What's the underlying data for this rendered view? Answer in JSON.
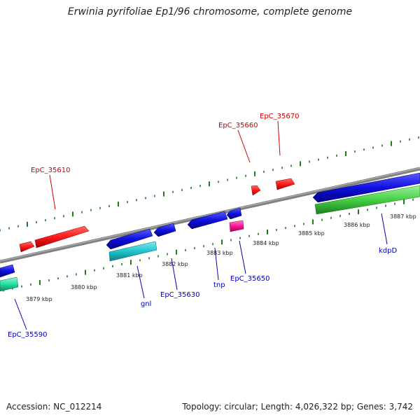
{
  "title": "Erwinia pyrifoliae Ep1/96 chromosome, complete genome",
  "footer": {
    "accession": "Accession: NC_012214",
    "summary": "Topology: circular; Length: 4,026,322 bp; Genes: 3,742"
  },
  "scale_labels": [
    "3879 kbp",
    "3880 kbp",
    "3881 kbp",
    "3882 kbp",
    "3883 kbp",
    "3884 kbp",
    "3885 kbp",
    "3886 kbp",
    "3887 kbp"
  ],
  "gene_labels": {
    "EpC_35610": "EpC_35610",
    "EpC_35660": "EpC_35660",
    "EpC_35670": "EpC_35670",
    "EpC_35590": "EpC_35590",
    "gnl": "gnl",
    "EpC_35630": "EpC_35630",
    "tnp": "tnp",
    "EpC_35650": "EpC_35650",
    "kdpD": "kdpD"
  },
  "colors": {
    "backbone": "#808080",
    "ticks": "#1f7a1f",
    "forward_cds": "#ff1a1a",
    "reverse_cds": "#1010e0",
    "rna_cyan": "#22c4cc",
    "rna_green": "#44d044",
    "rna_teal": "#22e0a0",
    "rna_pink": "#ff1493",
    "label_red": "#cc0000",
    "label_blue": "#0000b8"
  }
}
